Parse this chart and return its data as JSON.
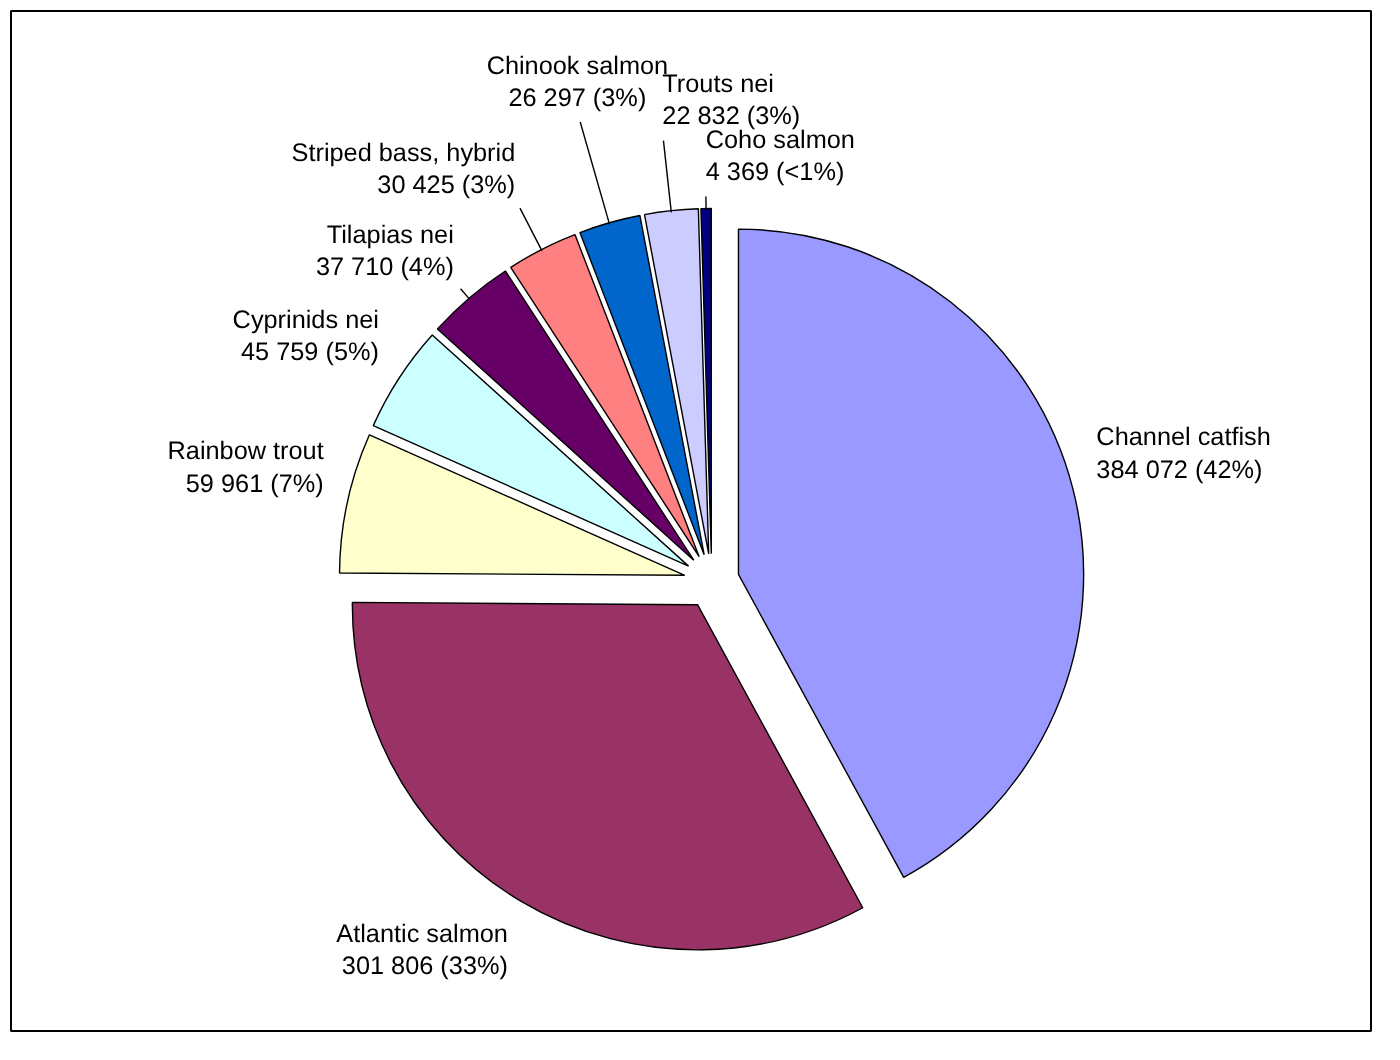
{
  "chart_data": {
    "type": "pie",
    "categories": [
      "Channel catfish",
      "Atlantic salmon",
      "Rainbow trout",
      "Cyprinids nei",
      "Tilapias nei",
      "Striped bass, hybrid",
      "Chinook salmon",
      "Trouts nei",
      "Coho salmon"
    ],
    "values": [
      384072,
      301806,
      59961,
      45759,
      37710,
      30425,
      26297,
      22832,
      4369
    ],
    "colors": [
      "#9999ff",
      "#993366",
      "#ffffcc",
      "#ccffff",
      "#660066",
      "#ff8080",
      "#0066cc",
      "#ccccff",
      "#000080"
    ],
    "value_labels": [
      "384 072 (42%)",
      "301 806 (33%)",
      "59 961 (7%)",
      "45 759 (5%)",
      "37 710 (4%)",
      "30 425 (3%)",
      "26 297 (3%)",
      "22 832 (3%)",
      "4 369 (<1%)"
    ]
  }
}
